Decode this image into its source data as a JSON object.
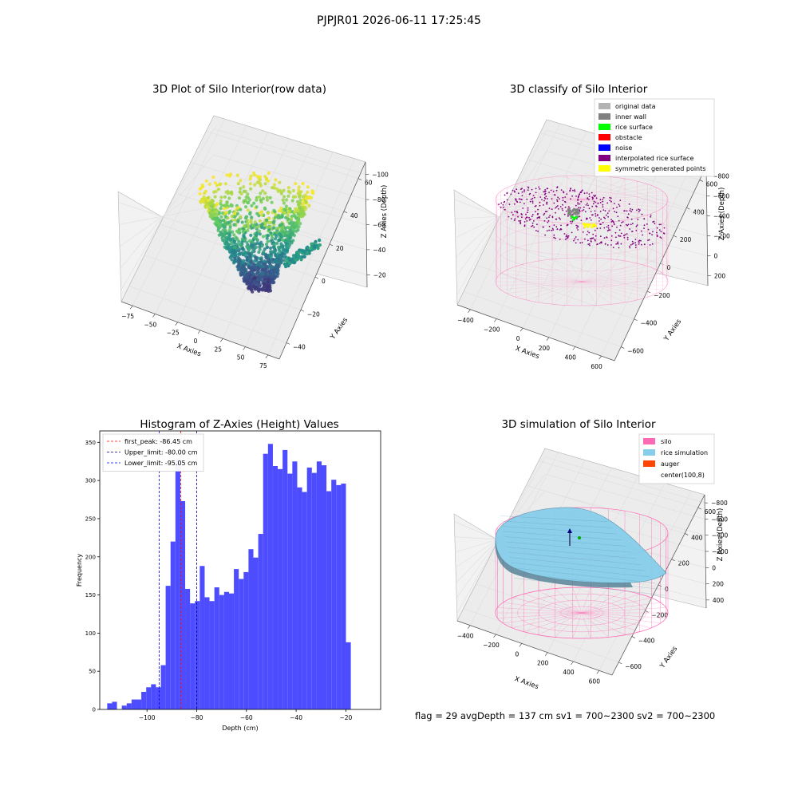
{
  "figure": {
    "suptitle": "PJPJR01 2026-06-11 17:25:45"
  },
  "footer": {
    "text": "flag = 29  avgDepth = 137 cm  sv1 = 700~2300  sv2 = 700~2300"
  },
  "chart_data": [
    {
      "type": "scatter",
      "title": "3D Plot of Silo Interior(row data)",
      "xlabel": "X Axies",
      "ylabel": "Y Axies",
      "zlabel": "Z Axies (Depth)",
      "x_ticks": [
        "−75",
        "−50",
        "−25",
        "0",
        "25",
        "50",
        "75"
      ],
      "y_ticks": [
        "−40",
        "−20",
        "0",
        "20",
        "40",
        "60"
      ],
      "z_ticks": [
        "−20",
        "−40",
        "−60",
        "−80",
        "−100"
      ],
      "colormap": "viridis"
    },
    {
      "type": "scatter",
      "title": "3D classify of Silo Interior",
      "xlabel": "X Axies",
      "ylabel": "Y Axies",
      "zlabel": "Z Axies (Depth)",
      "x_ticks": [
        "−400",
        "−200",
        "0",
        "200",
        "400",
        "600"
      ],
      "y_ticks": [
        "−600",
        "−400",
        "−200",
        "0",
        "200",
        "400",
        "600"
      ],
      "z_ticks": [
        "200",
        "0",
        "−200",
        "−400",
        "−600",
        "−800"
      ],
      "legend": [
        {
          "label": "original data",
          "color": "#b3b3b3"
        },
        {
          "label": "inner wall",
          "color": "#808080"
        },
        {
          "label": "rice surface",
          "color": "#00ff00"
        },
        {
          "label": "obstacle",
          "color": "#ff0000"
        },
        {
          "label": "noise",
          "color": "#0000ff"
        },
        {
          "label": "interpolated rice surface",
          "color": "#800080"
        },
        {
          "label": "symmetric generated points",
          "color": "#ffff00"
        }
      ],
      "silo_color": "#ff69b4"
    },
    {
      "type": "bar",
      "title": "Histogram of Z-Axies (Height) Values",
      "xlabel": "Depth (cm)",
      "ylabel": "Frequency",
      "xlim": [
        -119,
        -6
      ],
      "ylim": [
        0,
        365
      ],
      "x_ticks": [
        -100,
        -80,
        -60,
        -40,
        -20
      ],
      "y_ticks": [
        0,
        50,
        100,
        150,
        200,
        250,
        300,
        350
      ],
      "bin_start": -116.0,
      "bin_width": 1.96,
      "values": [
        8,
        10,
        0,
        5,
        8,
        13,
        13,
        23,
        29,
        33,
        29,
        58,
        162,
        220,
        328,
        273,
        158,
        139,
        142,
        188,
        147,
        142,
        160,
        150,
        154,
        152,
        184,
        171,
        180,
        210,
        199,
        230,
        335,
        348,
        319,
        315,
        340,
        309,
        325,
        291,
        285,
        317,
        310,
        325,
        320,
        286,
        301,
        294,
        296,
        88
      ],
      "color": "#4d4dff",
      "vlines": [
        {
          "label": "first_peak: -86.45 cm",
          "x": -86.45,
          "color": "#ff0000"
        },
        {
          "label": "Upper_limit: -80.00 cm",
          "x": -80.0,
          "color": "#00008b"
        },
        {
          "label": "Lower_limit: -95.05 cm",
          "x": -95.05,
          "color": "#0000ff"
        }
      ]
    },
    {
      "type": "surface",
      "title": "3D simulation of Silo Interior",
      "xlabel": "X Axies",
      "ylabel": "Y Axies",
      "zlabel": "Z Axies (Depth)",
      "x_ticks": [
        "−400",
        "−200",
        "0",
        "200",
        "400",
        "600"
      ],
      "y_ticks": [
        "−600",
        "−400",
        "−200",
        "0",
        "200",
        "400",
        "600"
      ],
      "z_ticks": [
        "400",
        "200",
        "0",
        "−200",
        "−400",
        "−600",
        "−800"
      ],
      "legend": [
        {
          "label": "silo",
          "color": "#ff69b4"
        },
        {
          "label": "rice simulation",
          "color": "#87ceeb"
        },
        {
          "label": "auger",
          "color": "#ff4500"
        },
        {
          "label": "center(100,8)",
          "color": "#ffffff"
        }
      ]
    }
  ]
}
